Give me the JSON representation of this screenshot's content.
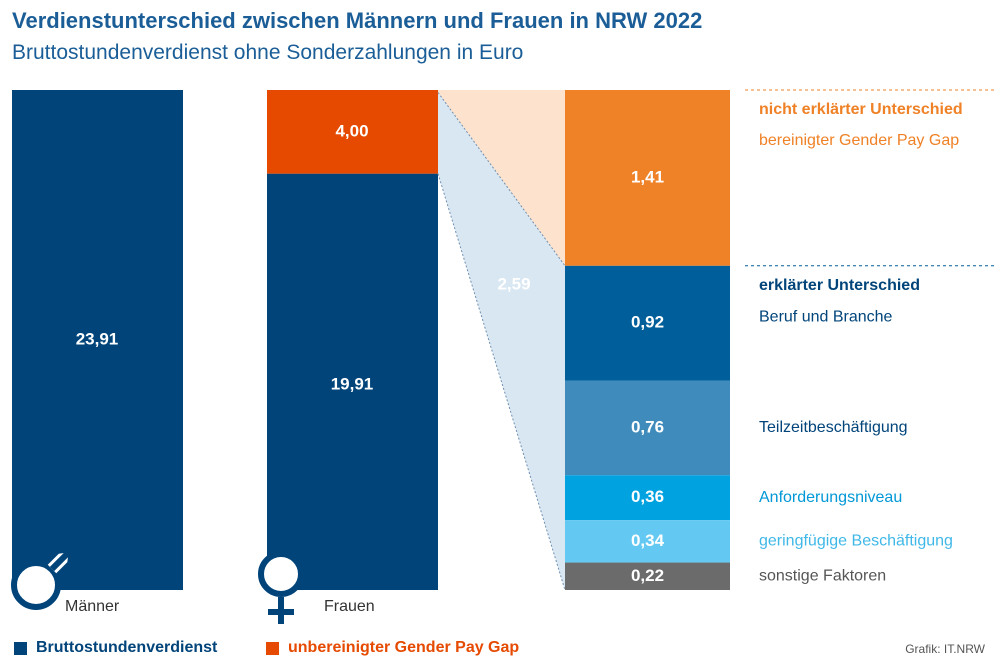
{
  "title": "Verdienstunterschied zwischen Männern und Frauen in NRW 2022",
  "subtitle": "Bruttostundenverdienst ohne Sonderzahlungen in Euro",
  "colors": {
    "dark_blue": "#00447a",
    "red_orange": "#e64a00",
    "orange": "#ef8126",
    "blue_1": "#005f9a",
    "blue_2": "#3e8bbc",
    "blue_3": "#00a2e0",
    "blue_4": "#63c9f2",
    "grey": "#6b6b6b",
    "text_blue": "#1b5e97",
    "peach": "#fde3cd",
    "light_blue": "#d9e7f2"
  },
  "icons": [
    "male-symbol-icon",
    "female-symbol-icon"
  ],
  "chart_data": {
    "type": "bar",
    "categories": [
      "Männer",
      "Frauen"
    ],
    "men": {
      "value": 23.91,
      "label": "23,91"
    },
    "women": {
      "base": {
        "value": 19.91,
        "label": "19,91"
      },
      "gap": {
        "value": 4.0,
        "label": "4,00"
      }
    },
    "explained_total_label": "2,59",
    "breakdown": {
      "unexplained": {
        "heading": "nicht erklärter Unterschied",
        "label": "bereinigter Gender Pay Gap",
        "value": 1.41,
        "value_label": "1,41"
      },
      "explained_heading": "erklärter Unterschied",
      "explained": [
        {
          "label": "Beruf und Branche",
          "value": 0.92,
          "value_label": "0,92"
        },
        {
          "label": "Teilzeitbeschäftigung",
          "value": 0.76,
          "value_label": "0,76"
        },
        {
          "label": "Anforderungsniveau",
          "value": 0.36,
          "value_label": "0,36"
        },
        {
          "label": "geringfügige Beschäftigung",
          "value": 0.34,
          "value_label": "0,34"
        },
        {
          "label": "sonstige Faktoren",
          "value": 0.22,
          "value_label": "0,22"
        }
      ]
    },
    "legend": [
      {
        "label": "Bruttostundenverdienst"
      },
      {
        "label": "unbereinigter Gender Pay Gap"
      }
    ]
  },
  "credit": "Grafik: IT.NRW"
}
